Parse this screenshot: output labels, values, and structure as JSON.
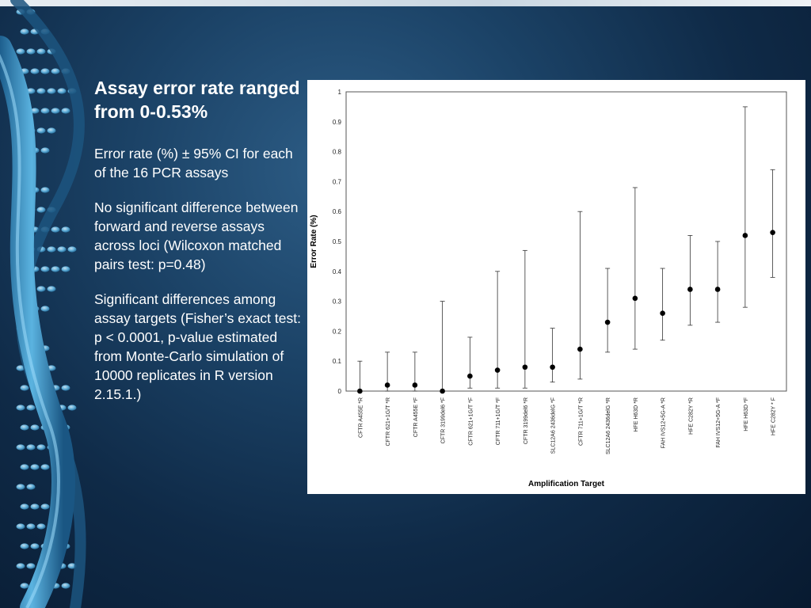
{
  "slide": {
    "title": "Assay error rate ranged from 0-0.53%",
    "bullets": [
      "Error rate (%) ± 95% CI for each of the 16 PCR assays",
      "No significant difference between forward and reverse assays across loci (Wilcoxon matched pairs test: p=0.48)",
      "Significant differences among assay targets (Fisher’s exact test: p < 0.0001, p-value estimated from Monte-Carlo simulation of 10000 replicates in R version 2.15.1.)"
    ]
  },
  "colors": {
    "background": "#0f2a47",
    "dna_strand": "#3f93c4",
    "text": "#ffffff",
    "plot_marks": "#000000"
  },
  "chart_data": {
    "type": "scatter",
    "title": "",
    "xlabel": "Amplification Target",
    "ylabel": "Error Rate (%)",
    "ylim": [
      0,
      1
    ],
    "y_ticks": [
      "0",
      "0.1",
      "0.2",
      "0.3",
      "0.4",
      "0.5",
      "0.6",
      "0.7",
      "0.8",
      "0.9",
      "1"
    ],
    "grid": false,
    "legend": "none",
    "error_bars": "95% CI",
    "categories": [
      "CFTR A455E *R",
      "CFTR 621+1G/T *R",
      "CFTR A455E *F",
      "CFTR 3199del6 *F",
      "CFTR 621+1G/T *F",
      "CFTR 711+1G/T *F",
      "CFTR 3199del6 *R",
      "SLC12A6 2436delG *F",
      "CFTR 711+1G/T *R",
      "SLC12A6 2436delG *R",
      "HFE H63D *R",
      "FAH  IVS12+5G-A *R",
      "HFE  C282Y *R",
      "FAH  IVS12+5G-A *F",
      "HFE H63D *F",
      "HFE C282Y * F"
    ],
    "values": [
      0,
      0.02,
      0.02,
      0,
      0.05,
      0.07,
      0.08,
      0.08,
      0.14,
      0.23,
      0.31,
      0.26,
      0.34,
      0.34,
      0.52,
      0.53
    ],
    "ci_lower": [
      0,
      0,
      0,
      0,
      0.01,
      0.01,
      0.01,
      0.03,
      0.04,
      0.13,
      0.14,
      0.17,
      0.22,
      0.23,
      0.28,
      0.38
    ],
    "ci_upper": [
      0.1,
      0.13,
      0.13,
      0.3,
      0.18,
      0.4,
      0.47,
      0.21,
      0.6,
      0.41,
      0.68,
      0.41,
      0.52,
      0.5,
      0.95,
      0.74
    ]
  }
}
